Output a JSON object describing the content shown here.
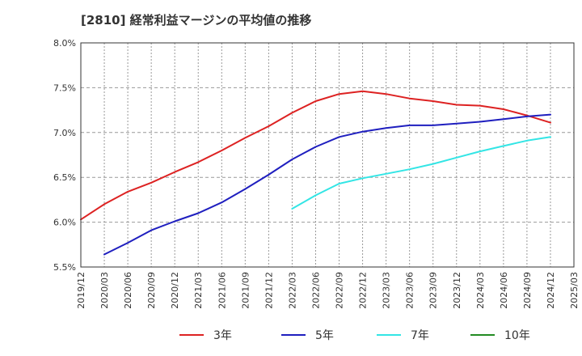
{
  "title": "[2810]  経常利益マージンの平均値の推移",
  "chart_data": {
    "type": "line",
    "title": "[2810]  経常利益マージンの平均値の推移",
    "xlabel": "",
    "ylabel": "",
    "ylim": [
      5.5,
      8.0
    ],
    "y_ticks": [
      "5.5%",
      "6.0%",
      "6.5%",
      "7.0%",
      "7.5%",
      "8.0%"
    ],
    "y_tick_values": [
      5.5,
      6.0,
      6.5,
      7.0,
      7.5,
      8.0
    ],
    "x_ticks": [
      "2019/12",
      "2020/03",
      "2020/06",
      "2020/09",
      "2020/12",
      "2021/03",
      "2021/06",
      "2021/09",
      "2021/12",
      "2022/03",
      "2022/06",
      "2022/09",
      "2022/12",
      "2023/03",
      "2023/06",
      "2023/09",
      "2023/12",
      "2024/03",
      "2024/06",
      "2024/09",
      "2024/12",
      "2025/03"
    ],
    "grid": true,
    "legend_position": "bottom",
    "series": [
      {
        "name": "3年",
        "color": "#dd2222",
        "x": [
          "2019/12",
          "2020/03",
          "2020/06",
          "2020/09",
          "2020/12",
          "2021/03",
          "2021/06",
          "2021/09",
          "2021/12",
          "2022/03",
          "2022/06",
          "2022/09",
          "2022/12",
          "2023/03",
          "2023/06",
          "2023/09",
          "2023/12",
          "2024/03",
          "2024/06",
          "2024/09",
          "2024/12"
        ],
        "values": [
          6.03,
          6.2,
          6.34,
          6.44,
          6.56,
          6.67,
          6.8,
          6.94,
          7.07,
          7.22,
          7.35,
          7.43,
          7.46,
          7.43,
          7.38,
          7.35,
          7.31,
          7.3,
          7.26,
          7.19,
          7.11
        ]
      },
      {
        "name": "5年",
        "color": "#1f1fbf",
        "x": [
          "2020/03",
          "2020/06",
          "2020/09",
          "2020/12",
          "2021/03",
          "2021/06",
          "2021/09",
          "2021/12",
          "2022/03",
          "2022/06",
          "2022/09",
          "2022/12",
          "2023/03",
          "2023/06",
          "2023/09",
          "2023/12",
          "2024/03",
          "2024/06",
          "2024/09",
          "2024/12"
        ],
        "values": [
          5.64,
          5.77,
          5.91,
          6.01,
          6.1,
          6.22,
          6.37,
          6.53,
          6.7,
          6.84,
          6.95,
          7.01,
          7.05,
          7.08,
          7.08,
          7.1,
          7.12,
          7.15,
          7.18,
          7.2
        ]
      },
      {
        "name": "7年",
        "color": "#33e5e5",
        "x": [
          "2022/03",
          "2022/06",
          "2022/09",
          "2022/12",
          "2023/03",
          "2023/06",
          "2023/09",
          "2023/12",
          "2024/03",
          "2024/06",
          "2024/09",
          "2024/12"
        ],
        "values": [
          6.15,
          6.3,
          6.43,
          6.49,
          6.54,
          6.59,
          6.65,
          6.72,
          6.79,
          6.85,
          6.91,
          6.95
        ]
      },
      {
        "name": "10年",
        "color": "#228b22",
        "x": [],
        "values": []
      }
    ]
  }
}
